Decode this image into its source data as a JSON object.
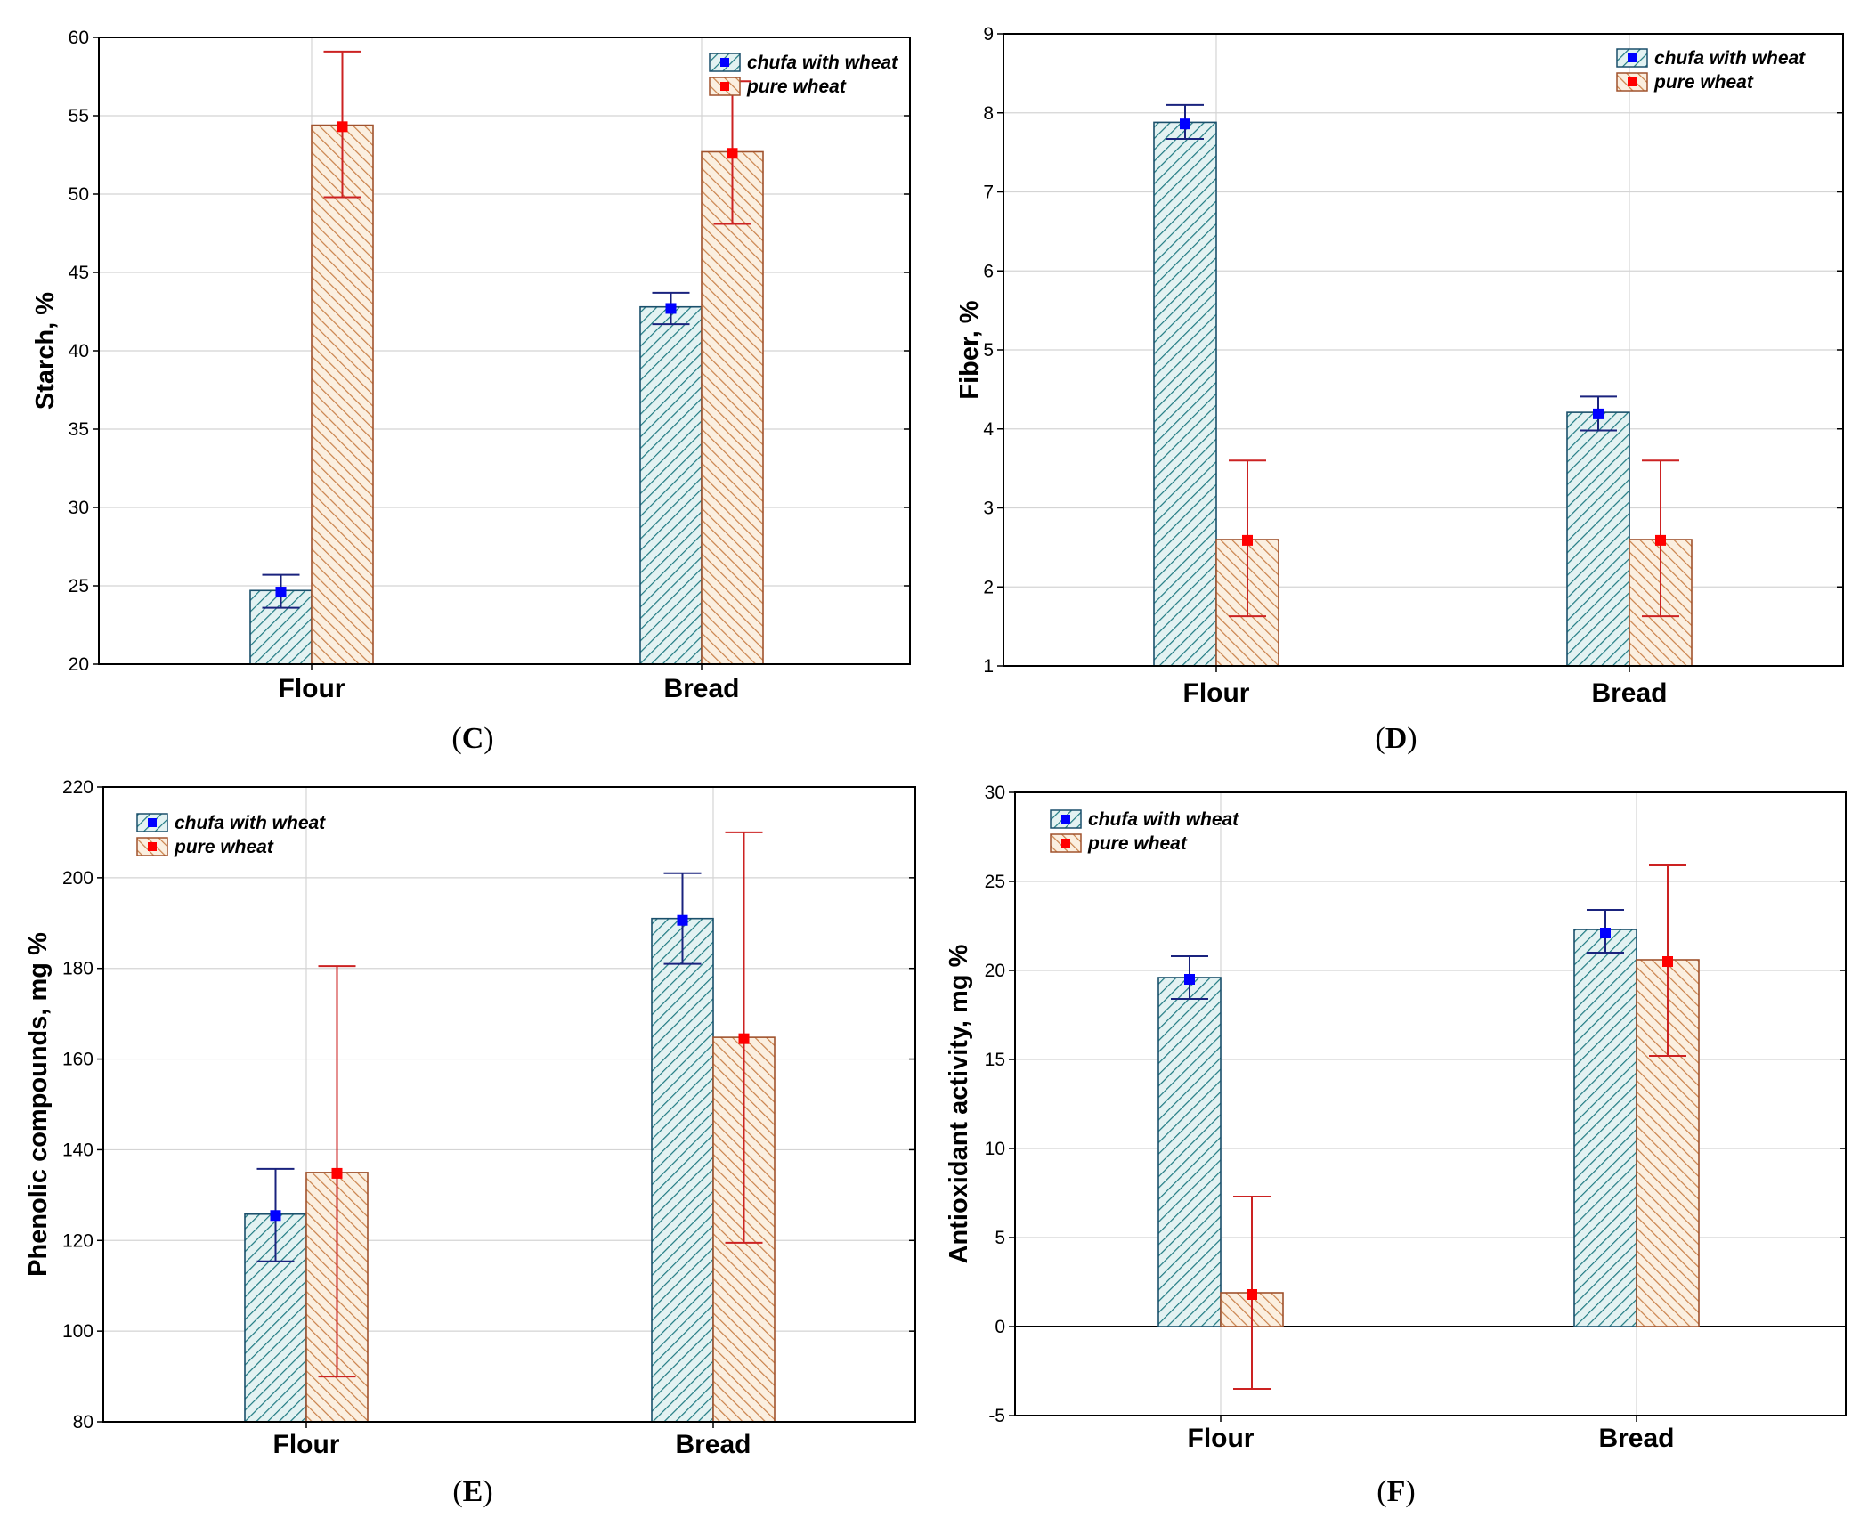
{
  "legend": {
    "series_a": "chufa with wheat",
    "series_b": "pure wheat"
  },
  "colors": {
    "series_a_fill": "#e3f2f2",
    "series_a_hatch": "#1f7a82",
    "series_a_edge": "#1a4f6b",
    "series_a_marker": "#0000ff",
    "series_a_error": "#1a237e",
    "series_b_fill": "#fbefe0",
    "series_b_hatch": "#c9814a",
    "series_b_edge": "#a0522d",
    "series_b_marker": "#ff0000",
    "series_b_error": "#cc2222"
  },
  "chart_data": [
    {
      "id": "C",
      "panel_label": "(C)",
      "letter": "C",
      "type": "bar",
      "ylabel": "Starch, %",
      "xlabel": "",
      "categories": [
        "Flour",
        "Bread"
      ],
      "ylim": [
        20,
        60
      ],
      "yticks": [
        20,
        25,
        30,
        35,
        40,
        45,
        50,
        55,
        60
      ],
      "legend_position": "top-right",
      "series": [
        {
          "name": "chufa with wheat",
          "values": [
            24.7,
            42.8
          ],
          "mean": [
            24.6,
            42.7
          ],
          "err_low": [
            23.6,
            41.7
          ],
          "err_high": [
            25.7,
            43.7
          ]
        },
        {
          "name": "pure wheat",
          "values": [
            54.4,
            52.7
          ],
          "mean": [
            54.3,
            52.6
          ],
          "err_low": [
            49.8,
            48.1
          ],
          "err_high": [
            59.1,
            57.2
          ]
        }
      ]
    },
    {
      "id": "D",
      "panel_label": "(D)",
      "letter": "D",
      "type": "bar",
      "ylabel": "Fiber, %",
      "xlabel": "",
      "categories": [
        "Flour",
        "Bread"
      ],
      "ylim": [
        1,
        9
      ],
      "yticks": [
        1,
        2,
        3,
        4,
        5,
        6,
        7,
        8,
        9
      ],
      "legend_position": "top-right",
      "series": [
        {
          "name": "chufa with wheat",
          "values": [
            7.88,
            4.21
          ],
          "mean": [
            7.86,
            4.19
          ],
          "err_low": [
            7.67,
            3.98
          ],
          "err_high": [
            8.1,
            4.41
          ]
        },
        {
          "name": "pure wheat",
          "values": [
            2.6,
            2.6
          ],
          "mean": [
            2.59,
            2.59
          ],
          "err_low": [
            1.63,
            1.63
          ],
          "err_high": [
            3.6,
            3.6
          ]
        }
      ]
    },
    {
      "id": "E",
      "panel_label": "(E)",
      "letter": "E",
      "type": "bar",
      "ylabel": "Phenolic compounds, mg %",
      "xlabel": "",
      "categories": [
        "Flour",
        "Bread"
      ],
      "ylim": [
        80,
        220
      ],
      "yticks": [
        80,
        100,
        120,
        140,
        160,
        180,
        200,
        220
      ],
      "legend_position": "top-left",
      "series": [
        {
          "name": "chufa with wheat",
          "values": [
            125.8,
            191
          ],
          "mean": [
            125.5,
            190.6
          ],
          "err_low": [
            115.4,
            181
          ],
          "err_high": [
            135.8,
            201
          ]
        },
        {
          "name": "pure wheat",
          "values": [
            135,
            164.8
          ],
          "mean": [
            134.8,
            164.5
          ],
          "err_low": [
            90,
            119.5
          ],
          "err_high": [
            180.5,
            210
          ]
        }
      ]
    },
    {
      "id": "F",
      "panel_label": "(F)",
      "letter": "F",
      "type": "bar",
      "ylabel": "Antioxidant  activity, mg %",
      "xlabel": "",
      "categories": [
        "Flour",
        "Bread"
      ],
      "ylim": [
        -5,
        30
      ],
      "yticks": [
        -5,
        0,
        5,
        10,
        15,
        20,
        25,
        30
      ],
      "legend_position": "top-left",
      "series": [
        {
          "name": "chufa with wheat",
          "values": [
            19.6,
            22.3
          ],
          "mean": [
            19.5,
            22.1
          ],
          "err_low": [
            18.4,
            21
          ],
          "err_high": [
            20.8,
            23.4
          ]
        },
        {
          "name": "pure wheat",
          "values": [
            1.9,
            20.6
          ],
          "mean": [
            1.8,
            20.5
          ],
          "err_low": [
            -3.5,
            15.2
          ],
          "err_high": [
            7.3,
            25.9
          ]
        }
      ]
    }
  ]
}
